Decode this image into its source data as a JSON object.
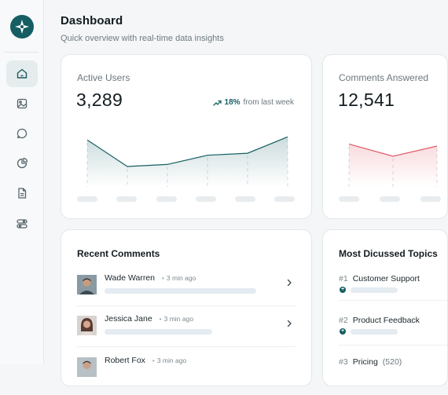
{
  "colors": {
    "accent": "#155e63",
    "negative": "#e25a68"
  },
  "header": {
    "title": "Dashboard",
    "subtitle": "Quick overview with real-time data insights"
  },
  "sidebar": {
    "items": [
      {
        "icon": "home-icon",
        "active": true
      },
      {
        "icon": "image-icon",
        "active": false
      },
      {
        "icon": "chat-icon",
        "active": false
      },
      {
        "icon": "pie-chart-icon",
        "active": false
      },
      {
        "icon": "document-icon",
        "active": false
      },
      {
        "icon": "toggle-settings-icon",
        "active": false
      }
    ]
  },
  "stats": [
    {
      "label": "Active Users",
      "value": "3,289",
      "trend_pct": "18%",
      "trend_text": "from last week",
      "chart_data": {
        "type": "area",
        "values": [
          46,
          20,
          22,
          31,
          33,
          49
        ],
        "ylim": [
          0,
          60
        ]
      }
    },
    {
      "label": "Comments Answered",
      "value": "12,541",
      "chart_data": {
        "type": "area",
        "values": [
          42,
          30,
          40
        ],
        "ylim": [
          0,
          60
        ]
      }
    }
  ],
  "recent_comments": {
    "title": "Recent Comments",
    "items": [
      {
        "name": "Wade Warren",
        "time": "3 min ago"
      },
      {
        "name": "Jessica Jane",
        "time": "3 min ago"
      },
      {
        "name": "Robert Fox",
        "time": "3 min ago"
      }
    ]
  },
  "topics": {
    "title": "Most Dicussed Topics",
    "items": [
      {
        "rank": "#1",
        "name": "Customer Support",
        "count": ""
      },
      {
        "rank": "#2",
        "name": "Product Feedback",
        "count": ""
      },
      {
        "rank": "#3",
        "name": "Pricing",
        "count": "(520)"
      }
    ]
  }
}
